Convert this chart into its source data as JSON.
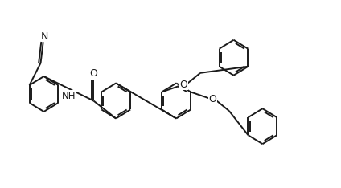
{
  "bg_color": "#ffffff",
  "line_color": "#1a1a1a",
  "line_width": 1.4,
  "font_size": 8.5,
  "figsize": [
    4.24,
    2.34
  ],
  "dpi": 100,
  "xlim": [
    0,
    10.6
  ],
  "ylim": [
    0,
    5.5
  ]
}
